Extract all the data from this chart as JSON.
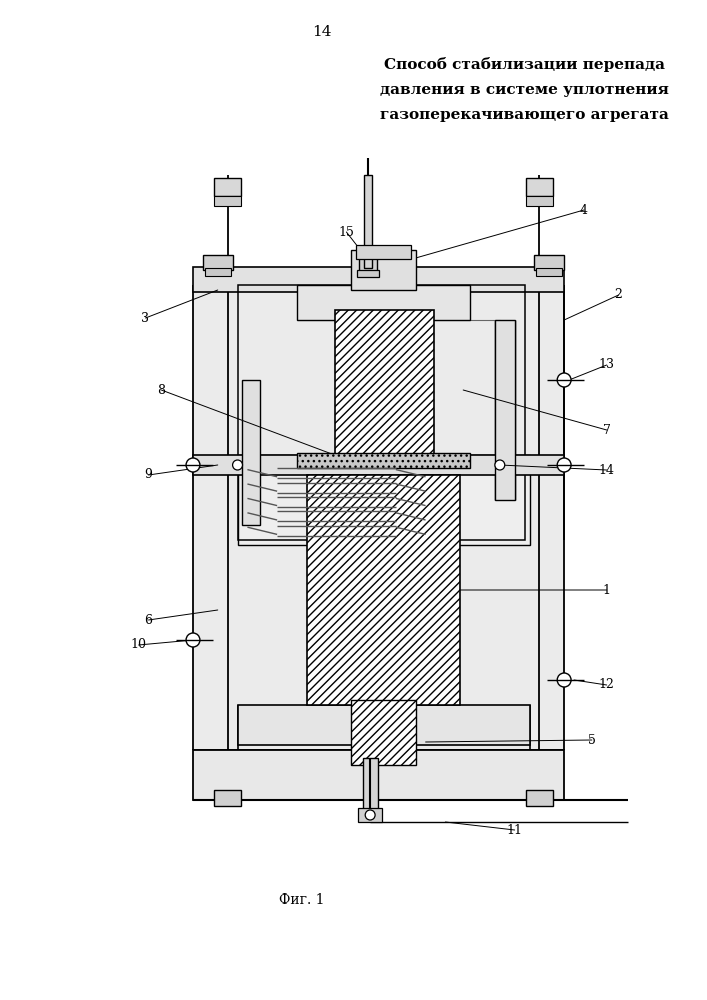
{
  "page_number": "14",
  "title_line1": "Способ стабилизации перепада",
  "title_line2": "давления в системе уплотнения",
  "title_line3": "газоперекачивающего агрегата",
  "figure_label": "Фиг. 1",
  "bg_color": "#ffffff",
  "lc": "#000000",
  "gray_light": "#e8e8e8",
  "gray_mid": "#d0d0d0",
  "gray_dark": "#b0b0b0"
}
